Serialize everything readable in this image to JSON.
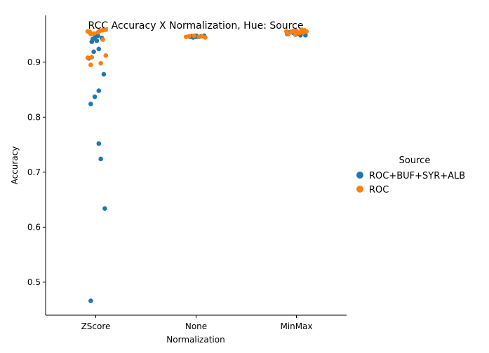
{
  "chart_data": {
    "type": "scatter",
    "title": "RCC Accuracy X Normalization, Hue: Source",
    "xlabel": "Normalization",
    "ylabel": "Accuracy",
    "categories": [
      "ZScore",
      "None",
      "MinMax"
    ],
    "ylim": [
      0.44,
      0.985
    ],
    "yticks": [
      "0.5",
      "0.6",
      "0.7",
      "0.8",
      "0.9"
    ],
    "grid": false,
    "legend": {
      "title": "Source",
      "placement": "right",
      "entries": [
        "ROC+BUF+SYR+ALB",
        "ROC"
      ]
    },
    "series": [
      {
        "name": "ROC+BUF+SYR+ALB",
        "color": "#1f77b4",
        "points": [
          {
            "x": "ZScore",
            "y": 0.466,
            "j": -0.05
          },
          {
            "x": "ZScore",
            "y": 0.634,
            "j": 0.09
          },
          {
            "x": "ZScore",
            "y": 0.724,
            "j": 0.05
          },
          {
            "x": "ZScore",
            "y": 0.752,
            "j": 0.03
          },
          {
            "x": "ZScore",
            "y": 0.824,
            "j": -0.05
          },
          {
            "x": "ZScore",
            "y": 0.837,
            "j": -0.01
          },
          {
            "x": "ZScore",
            "y": 0.848,
            "j": 0.03
          },
          {
            "x": "ZScore",
            "y": 0.878,
            "j": 0.08
          },
          {
            "x": "ZScore",
            "y": 0.907,
            "j": -0.07
          },
          {
            "x": "ZScore",
            "y": 0.919,
            "j": -0.02
          },
          {
            "x": "ZScore",
            "y": 0.924,
            "j": 0.03
          },
          {
            "x": "ZScore",
            "y": 0.937,
            "j": -0.04
          },
          {
            "x": "ZScore",
            "y": 0.939,
            "j": 0.01
          },
          {
            "x": "ZScore",
            "y": 0.942,
            "j": -0.03
          },
          {
            "x": "ZScore",
            "y": 0.944,
            "j": 0.06
          },
          {
            "x": "ZScore",
            "y": 0.945,
            "j": -0.01
          },
          {
            "x": "ZScore",
            "y": 0.948,
            "j": 0.02
          },
          {
            "x": "None",
            "y": 0.945,
            "j": -0.03
          },
          {
            "x": "None",
            "y": 0.946,
            "j": -0.06
          },
          {
            "x": "None",
            "y": 0.946,
            "j": -0.01
          },
          {
            "x": "None",
            "y": 0.946,
            "j": 0.02
          },
          {
            "x": "None",
            "y": 0.947,
            "j": 0.05
          },
          {
            "x": "None",
            "y": 0.947,
            "j": -0.04
          },
          {
            "x": "None",
            "y": 0.948,
            "j": 0.0
          },
          {
            "x": "None",
            "y": 0.948,
            "j": 0.08
          },
          {
            "x": "MinMax",
            "y": 0.949,
            "j": 0.04
          },
          {
            "x": "MinMax",
            "y": 0.949,
            "j": 0.09
          },
          {
            "x": "MinMax",
            "y": 0.951,
            "j": -0.09
          },
          {
            "x": "MinMax",
            "y": 0.952,
            "j": 0.01
          },
          {
            "x": "MinMax",
            "y": 0.953,
            "j": -0.03
          },
          {
            "x": "MinMax",
            "y": 0.954,
            "j": 0.06
          },
          {
            "x": "MinMax",
            "y": 0.955,
            "j": -0.06
          }
        ]
      },
      {
        "name": "ROC",
        "color": "#ff7f0e",
        "points": [
          {
            "x": "ZScore",
            "y": 0.895,
            "j": -0.05
          },
          {
            "x": "ZScore",
            "y": 0.898,
            "j": 0.05
          },
          {
            "x": "ZScore",
            "y": 0.908,
            "j": -0.08
          },
          {
            "x": "ZScore",
            "y": 0.909,
            "j": -0.04
          },
          {
            "x": "ZScore",
            "y": 0.912,
            "j": 0.1
          },
          {
            "x": "ZScore",
            "y": 0.941,
            "j": 0.07
          },
          {
            "x": "ZScore",
            "y": 0.951,
            "j": -0.05
          },
          {
            "x": "ZScore",
            "y": 0.952,
            "j": -0.02
          },
          {
            "x": "ZScore",
            "y": 0.954,
            "j": 0.02
          },
          {
            "x": "ZScore",
            "y": 0.955,
            "j": -0.06
          },
          {
            "x": "ZScore",
            "y": 0.956,
            "j": -0.08
          },
          {
            "x": "ZScore",
            "y": 0.957,
            "j": 0.04
          },
          {
            "x": "ZScore",
            "y": 0.958,
            "j": 0.07
          },
          {
            "x": "ZScore",
            "y": 0.959,
            "j": 0.1
          },
          {
            "x": "None",
            "y": 0.945,
            "j": 0.09
          },
          {
            "x": "None",
            "y": 0.946,
            "j": -0.1
          },
          {
            "x": "None",
            "y": 0.946,
            "j": 0.03
          },
          {
            "x": "None",
            "y": 0.947,
            "j": -0.07
          },
          {
            "x": "None",
            "y": 0.947,
            "j": 0.06
          },
          {
            "x": "None",
            "y": 0.948,
            "j": -0.02
          },
          {
            "x": "MinMax",
            "y": 0.95,
            "j": -0.01
          },
          {
            "x": "MinMax",
            "y": 0.951,
            "j": -0.08
          },
          {
            "x": "MinMax",
            "y": 0.953,
            "j": 0.03
          },
          {
            "x": "MinMax",
            "y": 0.954,
            "j": 0.07
          },
          {
            "x": "MinMax",
            "y": 0.955,
            "j": -0.05
          },
          {
            "x": "MinMax",
            "y": 0.956,
            "j": 0.1
          },
          {
            "x": "MinMax",
            "y": 0.956,
            "j": -0.1
          },
          {
            "x": "MinMax",
            "y": 0.957,
            "j": 0.0
          },
          {
            "x": "MinMax",
            "y": 0.957,
            "j": -0.03
          },
          {
            "x": "MinMax",
            "y": 0.958,
            "j": 0.05
          },
          {
            "x": "MinMax",
            "y": 0.958,
            "j": 0.08
          }
        ]
      }
    ]
  }
}
